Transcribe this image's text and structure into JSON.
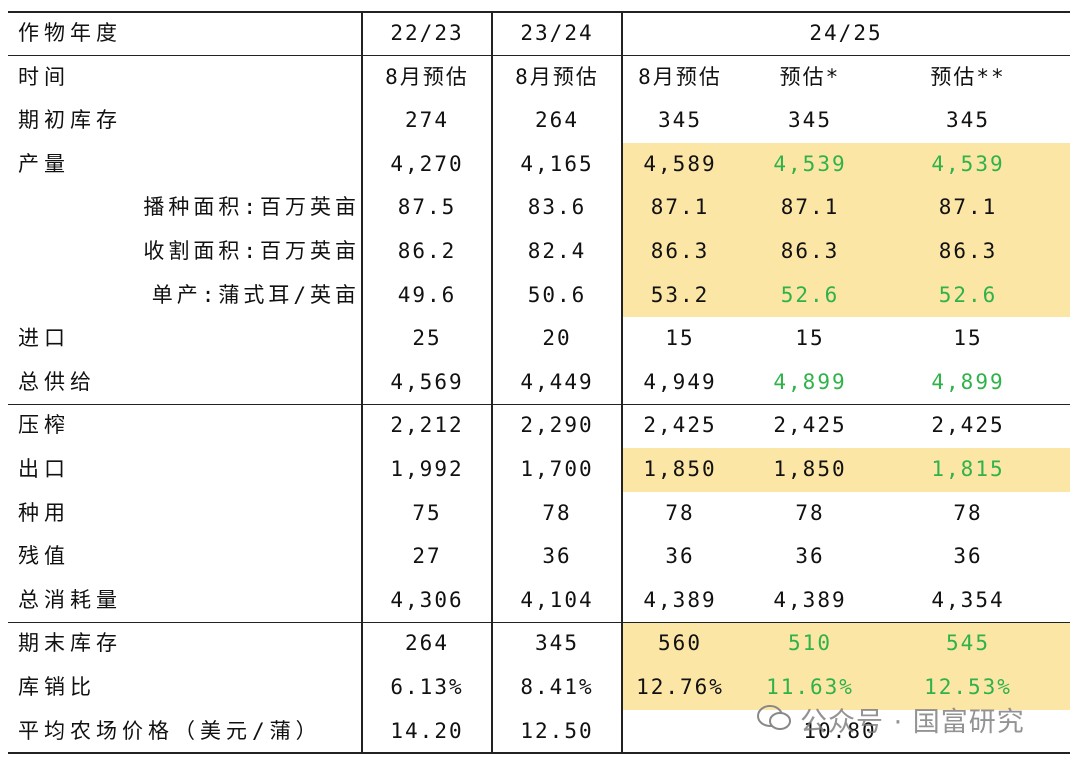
{
  "table": {
    "header": [
      "作物年度",
      "22/23",
      "23/24",
      "24/25"
    ],
    "rows": [
      [
        "时间",
        "8月预估",
        "8月预估",
        "8月预估",
        "预估*",
        "预估**"
      ],
      [
        "期初库存",
        "274",
        "264",
        "345",
        "345",
        "345"
      ],
      [
        "产量",
        "4,270",
        "4,165",
        "4,589",
        "4,539",
        "4,539"
      ],
      [
        "播种面积:百万英亩",
        "87.5",
        "83.6",
        "87.1",
        "87.1",
        "87.1"
      ],
      [
        "收割面积:百万英亩",
        "86.2",
        "82.4",
        "86.3",
        "86.3",
        "86.3"
      ],
      [
        "单产:蒲式耳/英亩",
        "49.6",
        "50.6",
        "53.2",
        "52.6",
        "52.6"
      ],
      [
        "进口",
        "25",
        "20",
        "15",
        "15",
        "15"
      ],
      [
        "总供给",
        "4,569",
        "4,449",
        "4,949",
        "4,899",
        "4,899"
      ],
      [
        "压榨",
        "2,212",
        "2,290",
        "2,425",
        "2,425",
        "2,425"
      ],
      [
        "出口",
        "1,992",
        "1,700",
        "1,850",
        "1,850",
        "1,815"
      ],
      [
        "种用",
        "75",
        "78",
        "78",
        "78",
        "78"
      ],
      [
        "残值",
        "27",
        "36",
        "36",
        "36",
        "36"
      ],
      [
        "总消耗量",
        "4,306",
        "4,104",
        "4,389",
        "4,389",
        "4,354"
      ],
      [
        "期末库存",
        "264",
        "345",
        "560",
        "510",
        "545"
      ],
      [
        "库销比",
        "6.13%",
        "8.41%",
        "12.76%",
        "11.63%",
        "12.53%"
      ],
      [
        "平均农场价格（美元/蒲）",
        "14.20",
        "12.50",
        "10.80"
      ]
    ]
  },
  "watermark": "公众号 · 国富研究"
}
